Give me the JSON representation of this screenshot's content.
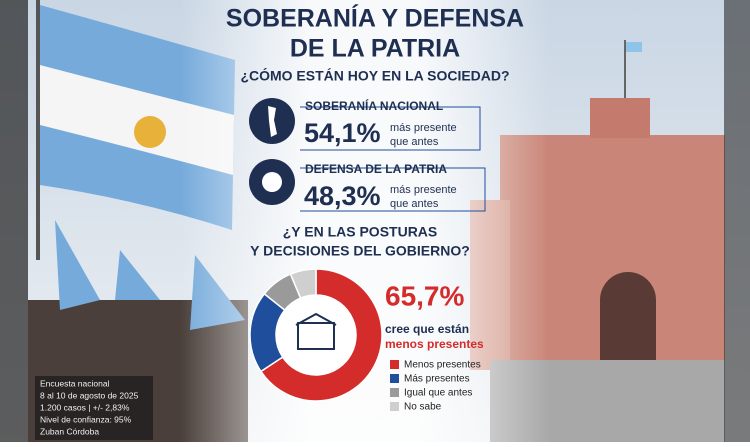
{
  "header": {
    "title_lines": [
      "SOBERANÍA Y DEFENSA",
      "DE LA PATRIA"
    ],
    "subtitle": "¿CÓMO ESTÁN HOY EN LA SOCIEDAD?"
  },
  "stats": [
    {
      "label": "SOBERANÍA NACIONAL",
      "value": "54,1%",
      "note_lines": [
        "más presente",
        "que antes"
      ]
    },
    {
      "label": "DEFENSA DE LA PATRIA",
      "value": "48,3%",
      "note_lines": [
        "más presente",
        "que antes"
      ]
    }
  ],
  "question_lines": [
    "¿Y EN LAS POSTURAS",
    "Y DECISIONES DEL GOBIERNO?"
  ],
  "chart_data": {
    "type": "donut",
    "categories": [
      "Menos presentes",
      "Más presentes",
      "Igual que antes",
      "No sabe"
    ],
    "values": [
      65.7,
      20,
      8,
      6.3
    ],
    "value_labels": [
      "65,7%",
      null,
      null,
      null
    ],
    "colors": [
      "#d42b2b",
      "#1f4e9c",
      "#9a9a9a",
      "#cfcfcf"
    ],
    "caption_lines": [
      "cree que están",
      "menos presentes"
    ]
  },
  "footnote_lines": [
    "Encuesta nacional",
    "8 al 10 de agosto de 2025",
    "1.200 casos | +/- 2,83%",
    "Nivel de confianza: 95%",
    "Zuban Córdoba"
  ]
}
